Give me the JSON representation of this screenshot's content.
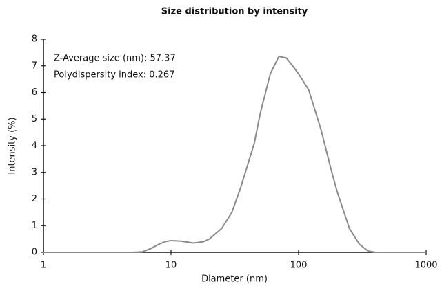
{
  "chart_data": {
    "type": "line",
    "title": "Size distribution by intensity",
    "xlabel": "Diameter (nm)",
    "ylabel": "Intensity (%)",
    "annotations": [
      "Z-Average size (nm): 57.37",
      "Polydispersity index: 0.267"
    ],
    "xscale": "log",
    "xlim": [
      1,
      1000
    ],
    "xticks": [
      1,
      10,
      100,
      1000
    ],
    "ylim": [
      0,
      8
    ],
    "yticks": [
      0,
      1,
      2,
      3,
      4,
      5,
      6,
      7,
      8
    ],
    "grid": false,
    "series": [
      {
        "color": "#8a8a8a",
        "x": [
          1,
          2,
          3,
          4,
          5,
          6,
          7,
          8,
          9,
          10,
          12,
          15,
          18,
          20,
          25,
          30,
          35,
          40,
          45,
          50,
          60,
          70,
          80,
          90,
          100,
          120,
          150,
          180,
          200,
          250,
          300,
          350,
          400,
          500,
          600,
          700,
          800,
          1000
        ],
        "values": [
          0,
          0,
          0,
          0,
          0,
          0.02,
          0.15,
          0.3,
          0.4,
          0.44,
          0.42,
          0.35,
          0.4,
          0.5,
          0.9,
          1.5,
          2.4,
          3.3,
          4.1,
          5.2,
          6.7,
          7.35,
          7.3,
          7.0,
          6.7,
          6.1,
          4.6,
          3.1,
          2.3,
          0.9,
          0.3,
          0.05,
          0,
          0,
          0,
          0,
          0,
          0
        ]
      }
    ]
  }
}
